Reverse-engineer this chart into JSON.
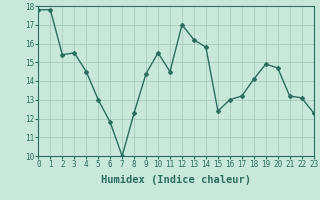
{
  "x": [
    0,
    1,
    2,
    3,
    4,
    5,
    6,
    7,
    8,
    9,
    10,
    11,
    12,
    13,
    14,
    15,
    16,
    17,
    18,
    19,
    20,
    21,
    22,
    23
  ],
  "y": [
    17.8,
    17.8,
    15.4,
    15.5,
    14.5,
    13.0,
    11.8,
    10.0,
    12.3,
    14.4,
    15.5,
    14.5,
    17.0,
    16.2,
    15.8,
    12.4,
    13.0,
    13.2,
    14.1,
    14.9,
    14.7,
    13.2,
    13.1,
    12.3
  ],
  "line_color": "#2d6e5e",
  "marker": "D",
  "marker_size": 2,
  "bg_color": "#c8e8dc",
  "grid_color": "#a0c8b8",
  "xlabel": "Humidex (Indice chaleur)",
  "ylabel": "",
  "ylim": [
    10,
    18
  ],
  "xlim": [
    0,
    23
  ],
  "yticks": [
    10,
    11,
    12,
    13,
    14,
    15,
    16,
    17,
    18
  ],
  "xticks": [
    0,
    1,
    2,
    3,
    4,
    5,
    6,
    7,
    8,
    9,
    10,
    11,
    12,
    13,
    14,
    15,
    16,
    17,
    18,
    19,
    20,
    21,
    22,
    23
  ],
  "tick_label_fontsize": 5.5,
  "xlabel_fontsize": 7.5,
  "line_width": 1.0
}
